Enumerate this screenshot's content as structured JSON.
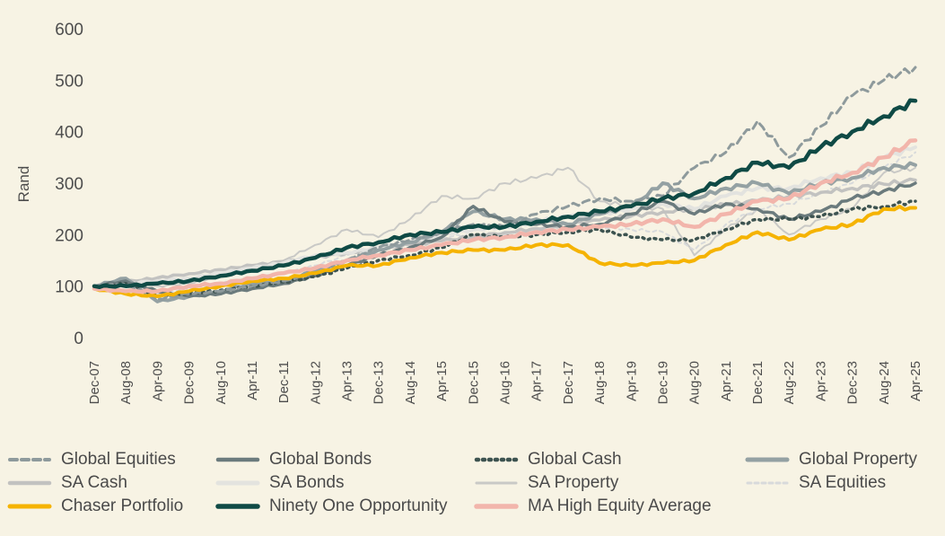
{
  "chart_data": {
    "type": "line",
    "title": "",
    "xlabel": "",
    "ylabel": "Rand",
    "ylim": [
      0,
      600
    ],
    "yticks": [
      "0",
      "100",
      "200",
      "300",
      "400",
      "500",
      "600"
    ],
    "grid": false,
    "legend_position": "bottom",
    "x_ticks": [
      "Dec-07",
      "Aug-08",
      "Apr-09",
      "Dec-09",
      "Aug-10",
      "Apr-11",
      "Dec-11",
      "Aug-12",
      "Apr-13",
      "Dec-13",
      "Aug-14",
      "Apr-15",
      "Dec-15",
      "Aug-16",
      "Apr-17",
      "Dec-17",
      "Aug-18",
      "Apr-19",
      "Dec-19",
      "Aug-20",
      "Apr-21",
      "Dec-21",
      "Aug-22",
      "Apr-23",
      "Dec-23",
      "Aug-24",
      "Apr-25"
    ],
    "series": [
      {
        "name": "Global Equities",
        "color": "#8e9a9c",
        "style": "dashed",
        "width": 3,
        "values": [
          100,
          105,
          75,
          85,
          90,
          100,
          110,
          125,
          150,
          175,
          190,
          205,
          220,
          215,
          240,
          255,
          270,
          265,
          275,
          330,
          360,
          420,
          350,
          410,
          470,
          500,
          525
        ]
      },
      {
        "name": "Global Bonds",
        "color": "#6b7b7d",
        "style": "solid",
        "width": 3.5,
        "values": [
          100,
          110,
          90,
          80,
          85,
          95,
          105,
          120,
          140,
          160,
          175,
          195,
          255,
          225,
          220,
          215,
          220,
          240,
          265,
          240,
          260,
          250,
          230,
          245,
          270,
          285,
          300
        ]
      },
      {
        "name": "Global Cash",
        "color": "#3d5350",
        "style": "dotted",
        "width": 3.5,
        "values": [
          100,
          105,
          80,
          85,
          92,
          100,
          108,
          118,
          135,
          150,
          160,
          175,
          200,
          195,
          200,
          205,
          210,
          195,
          190,
          190,
          210,
          230,
          230,
          235,
          250,
          255,
          265
        ]
      },
      {
        "name": "Global Property",
        "color": "#94a1a3",
        "style": "solid",
        "width": 4,
        "values": [
          100,
          115,
          70,
          80,
          90,
          105,
          110,
          130,
          150,
          170,
          185,
          205,
          245,
          230,
          230,
          220,
          240,
          255,
          300,
          270,
          290,
          300,
          280,
          300,
          310,
          330,
          335
        ]
      },
      {
        "name": "SA Cash",
        "color": "#c2c2c0",
        "style": "solid",
        "width": 3.5,
        "values": [
          100,
          108,
          116,
          124,
          132,
          140,
          148,
          156,
          164,
          172,
          180,
          188,
          196,
          204,
          212,
          220,
          228,
          236,
          244,
          250,
          258,
          266,
          274,
          282,
          290,
          298,
          306
        ]
      },
      {
        "name": "SA Bonds",
        "color": "#e3e3df",
        "style": "solid",
        "width": 4,
        "values": [
          100,
          105,
          110,
          115,
          125,
          135,
          145,
          160,
          165,
          175,
          185,
          200,
          210,
          215,
          225,
          235,
          240,
          250,
          260,
          250,
          275,
          290,
          290,
          310,
          320,
          350,
          370
        ]
      },
      {
        "name": "SA Property",
        "color": "#c9c9c6",
        "style": "solid",
        "width": 2,
        "values": [
          100,
          110,
          100,
          105,
          120,
          135,
          150,
          180,
          210,
          195,
          230,
          275,
          270,
          300,
          310,
          330,
          265,
          255,
          250,
          160,
          210,
          250,
          200,
          230,
          250,
          320,
          330
        ]
      },
      {
        "name": "SA Equities",
        "color": "#d8dadb",
        "style": "dashed",
        "width": 2,
        "values": [
          100,
          105,
          85,
          95,
          105,
          115,
          125,
          140,
          160,
          175,
          185,
          195,
          200,
          200,
          210,
          215,
          215,
          210,
          205,
          170,
          220,
          250,
          260,
          280,
          300,
          330,
          360
        ]
      },
      {
        "name": "Chaser Portfolio",
        "color": "#f5b300",
        "style": "solid",
        "width": 4,
        "values": [
          95,
          85,
          80,
          90,
          100,
          110,
          115,
          125,
          140,
          140,
          155,
          165,
          170,
          170,
          180,
          180,
          145,
          140,
          145,
          150,
          180,
          205,
          190,
          210,
          220,
          250,
          252
        ]
      },
      {
        "name": "Ninety One Opportunity",
        "color": "#0f4a45",
        "style": "solid",
        "width": 4.5,
        "values": [
          100,
          100,
          105,
          110,
          120,
          130,
          140,
          155,
          175,
          185,
          200,
          205,
          215,
          215,
          225,
          235,
          245,
          255,
          270,
          280,
          310,
          340,
          330,
          370,
          400,
          430,
          460
        ]
      },
      {
        "name": "MA High Equity Average",
        "color": "#f2b5ab",
        "style": "solid",
        "width": 4.5,
        "values": [
          95,
          90,
          90,
          100,
          105,
          115,
          125,
          135,
          150,
          160,
          170,
          180,
          190,
          195,
          205,
          210,
          215,
          220,
          230,
          215,
          240,
          265,
          270,
          300,
          320,
          350,
          383
        ]
      }
    ]
  }
}
